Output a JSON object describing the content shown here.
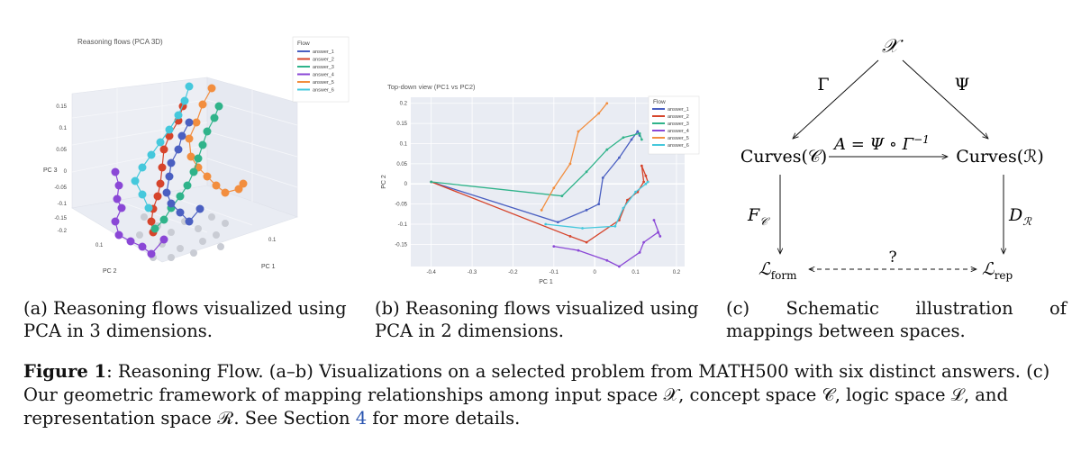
{
  "colors": {
    "answer_1": "#4a5fc1",
    "answer_2": "#d6442b",
    "answer_3": "#2fb38a",
    "answer_4": "#8a47d6",
    "answer_5": "#f28e3f",
    "answer_6": "#45c8dc",
    "link": "#2a55b0"
  },
  "panel_a": {
    "title": "Reasoning flows (PCA 3D)",
    "legend_title": "Flow",
    "legend": [
      "answer_1",
      "answer_2",
      "answer_3",
      "answer_4",
      "answer_5",
      "answer_6"
    ],
    "z_axis_label": "PC 3",
    "x_axis_label": "PC 1",
    "y_axis_label": "PC 2",
    "z_ticks": [
      "0.15",
      "0.1",
      "0.05",
      "0",
      "-0.05",
      "-0.1",
      "-0.15",
      "-0.2"
    ],
    "x_ticks": [
      "0.1"
    ],
    "y_ticks": [
      "0.1"
    ]
  },
  "chart_data": {
    "type": "line",
    "title": "Top-down view (PC1 vs PC2)",
    "xlabel": "PC 1",
    "ylabel": "PC 2",
    "xlim": [
      -0.45,
      0.22
    ],
    "ylim": [
      -0.205,
      0.215
    ],
    "x_ticks": [
      -0.4,
      -0.3,
      -0.2,
      -0.1,
      0,
      0.1,
      0.2
    ],
    "x_tick_labels": [
      "-0.4",
      "-0.3",
      "-0.2",
      "-0.1",
      "0",
      "0.1",
      "0.2"
    ],
    "y_ticks": [
      0.2,
      0.15,
      0.1,
      0.05,
      0,
      -0.05,
      -0.1,
      -0.15
    ],
    "y_tick_labels": [
      "0.2",
      "0.15",
      "0.1",
      "0.05",
      "0",
      "-0.05",
      "-0.1",
      "-0.15"
    ],
    "legend_title": "Flow",
    "legend_position": "top-right",
    "series": [
      {
        "name": "answer_1",
        "x": [
          -0.4,
          -0.09,
          -0.02,
          0.01,
          0.02,
          0.06,
          0.09,
          0.105,
          0.11
        ],
        "y": [
          0.005,
          -0.095,
          -0.065,
          -0.05,
          0.015,
          0.065,
          0.11,
          0.13,
          0.12
        ]
      },
      {
        "name": "answer_2",
        "x": [
          -0.4,
          -0.06,
          -0.02,
          0.06,
          0.08,
          0.105,
          0.12,
          0.115,
          0.125,
          0.13
        ],
        "y": [
          0.005,
          -0.13,
          -0.145,
          -0.09,
          -0.04,
          -0.02,
          0.005,
          0.045,
          0.02,
          0.005
        ]
      },
      {
        "name": "answer_3",
        "x": [
          -0.4,
          -0.08,
          -0.02,
          0.03,
          0.07,
          0.11,
          0.115
        ],
        "y": [
          0.005,
          -0.03,
          0.03,
          0.085,
          0.115,
          0.125,
          0.11
        ]
      },
      {
        "name": "answer_4",
        "x": [
          -0.1,
          -0.04,
          0.03,
          0.06,
          0.11,
          0.12,
          0.155,
          0.16,
          0.145
        ],
        "y": [
          -0.155,
          -0.165,
          -0.19,
          -0.205,
          -0.17,
          -0.145,
          -0.12,
          -0.13,
          -0.09
        ]
      },
      {
        "name": "answer_5",
        "x": [
          -0.13,
          -0.1,
          -0.06,
          -0.04,
          0.01,
          0.03
        ],
        "y": [
          -0.065,
          -0.01,
          0.05,
          0.13,
          0.175,
          0.2
        ]
      },
      {
        "name": "answer_6",
        "x": [
          -0.12,
          -0.03,
          0.05,
          0.07,
          0.1,
          0.125,
          0.13
        ],
        "y": [
          -0.1,
          -0.11,
          -0.105,
          -0.06,
          -0.02,
          0.0,
          0.005
        ]
      }
    ]
  },
  "panel_c": {
    "top_node": "𝒳",
    "gamma": "Γ",
    "psi": "Ψ",
    "curves_c": "Curves(𝒞)",
    "curves_r": "Curves(ℛ)",
    "a_map": "A = Ψ ∘ Γ",
    "a_map_sup": "−1",
    "f_label": "F",
    "f_sub": "𝒞",
    "d_label": "D",
    "d_sub": "ℛ",
    "l_form": "ℒ",
    "l_form_sub": "form",
    "l_rep": "ℒ",
    "l_rep_sub": "rep",
    "question": "?"
  },
  "captions": {
    "a": "(a) Reasoning flows visualized using PCA in 3 dimensions.",
    "b": "(b) Reasoning flows visualized using PCA in 2 dimensions.",
    "c": "(c) Schematic illustration of mappings between spaces.",
    "figure_label": "Figure",
    "figure_number": "1",
    "figure_text_1": ": Reasoning Flow. (a–b) Visualizations on a selected problem from MATH500 with six distinct answers. (c) Our geometric framework of mapping relationships among input space 𝒳, concept space 𝒞, logic space ℒ, and representation space ℛ. See Section",
    "section_ref": "4",
    "figure_text_2": "for more details."
  }
}
